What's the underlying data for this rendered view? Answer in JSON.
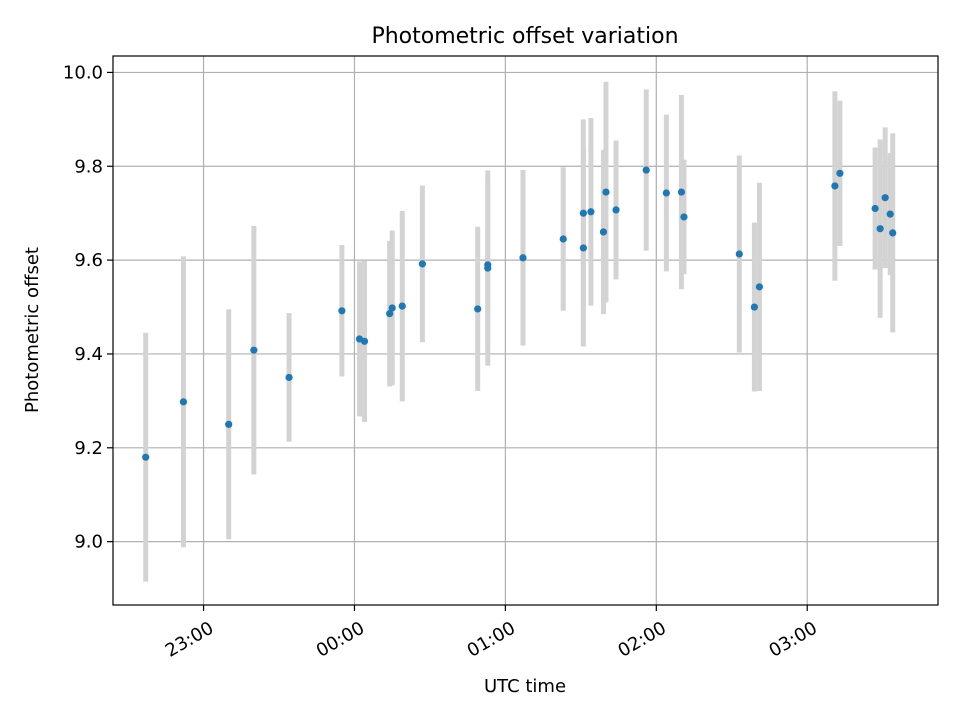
{
  "chart_data": {
    "type": "scatter",
    "title": "Photometric offset variation",
    "xlabel": "UTC time",
    "ylabel": "Photometric offset",
    "grid": true,
    "xlim": [
      "22:24",
      "03:52"
    ],
    "ylim": [
      8.865,
      10.035
    ],
    "xticks": [
      "23:00",
      "00:00",
      "01:00",
      "02:00",
      "03:00"
    ],
    "yticks": [
      "9.0",
      "9.2",
      "9.4",
      "9.6",
      "9.8",
      "10.0"
    ],
    "colors": {
      "points": "#1f77b4",
      "error_bars": "#d3d3d3",
      "grid": "#b0b0b0"
    },
    "series": [
      {
        "points": [
          {
            "x": "22:37",
            "y": 9.18,
            "yerr": 0.265
          },
          {
            "x": "22:52",
            "y": 9.298,
            "yerr": 0.31
          },
          {
            "x": "23:10",
            "y": 9.25,
            "yerr": 0.245
          },
          {
            "x": "23:20",
            "y": 9.408,
            "yerr": 0.265
          },
          {
            "x": "23:34",
            "y": 9.35,
            "yerr": 0.137
          },
          {
            "x": "23:55",
            "y": 9.492,
            "yerr": 0.14
          },
          {
            "x": "00:02",
            "y": 9.432,
            "yerr": 0.165
          },
          {
            "x": "00:04",
            "y": 9.427,
            "yerr": 0.172
          },
          {
            "x": "00:14",
            "y": 9.486,
            "yerr": 0.155
          },
          {
            "x": "00:15",
            "y": 9.498,
            "yerr": 0.165
          },
          {
            "x": "00:19",
            "y": 9.502,
            "yerr": 0.203
          },
          {
            "x": "00:27",
            "y": 9.592,
            "yerr": 0.167
          },
          {
            "x": "00:49",
            "y": 9.496,
            "yerr": 0.175
          },
          {
            "x": "00:53",
            "y": 9.59,
            "yerr": 0.172
          },
          {
            "x": "00:53",
            "y": 9.583,
            "yerr": 0.208
          },
          {
            "x": "01:07",
            "y": 9.605,
            "yerr": 0.187
          },
          {
            "x": "01:23",
            "y": 9.645,
            "yerr": 0.153
          },
          {
            "x": "01:31",
            "y": 9.7,
            "yerr": 0.2
          },
          {
            "x": "01:31",
            "y": 9.626,
            "yerr": 0.21
          },
          {
            "x": "01:34",
            "y": 9.703,
            "yerr": 0.2
          },
          {
            "x": "01:39",
            "y": 9.66,
            "yerr": 0.175
          },
          {
            "x": "01:40",
            "y": 9.745,
            "yerr": 0.235
          },
          {
            "x": "01:44",
            "y": 9.707,
            "yerr": 0.148
          },
          {
            "x": "01:56",
            "y": 9.792,
            "yerr": 0.172
          },
          {
            "x": "02:04",
            "y": 9.743,
            "yerr": 0.167
          },
          {
            "x": "02:10",
            "y": 9.745,
            "yerr": 0.207
          },
          {
            "x": "02:11",
            "y": 9.692,
            "yerr": 0.122
          },
          {
            "x": "02:33",
            "y": 9.613,
            "yerr": 0.21
          },
          {
            "x": "02:39",
            "y": 9.5,
            "yerr": 0.18
          },
          {
            "x": "02:41",
            "y": 9.543,
            "yerr": 0.222
          },
          {
            "x": "03:11",
            "y": 9.758,
            "yerr": 0.202
          },
          {
            "x": "03:13",
            "y": 9.785,
            "yerr": 0.155
          },
          {
            "x": "03:27",
            "y": 9.71,
            "yerr": 0.13
          },
          {
            "x": "03:29",
            "y": 9.667,
            "yerr": 0.19
          },
          {
            "x": "03:31",
            "y": 9.733,
            "yerr": 0.15
          },
          {
            "x": "03:33",
            "y": 9.698,
            "yerr": 0.13
          },
          {
            "x": "03:34",
            "y": 9.658,
            "yerr": 0.212
          }
        ]
      }
    ]
  }
}
